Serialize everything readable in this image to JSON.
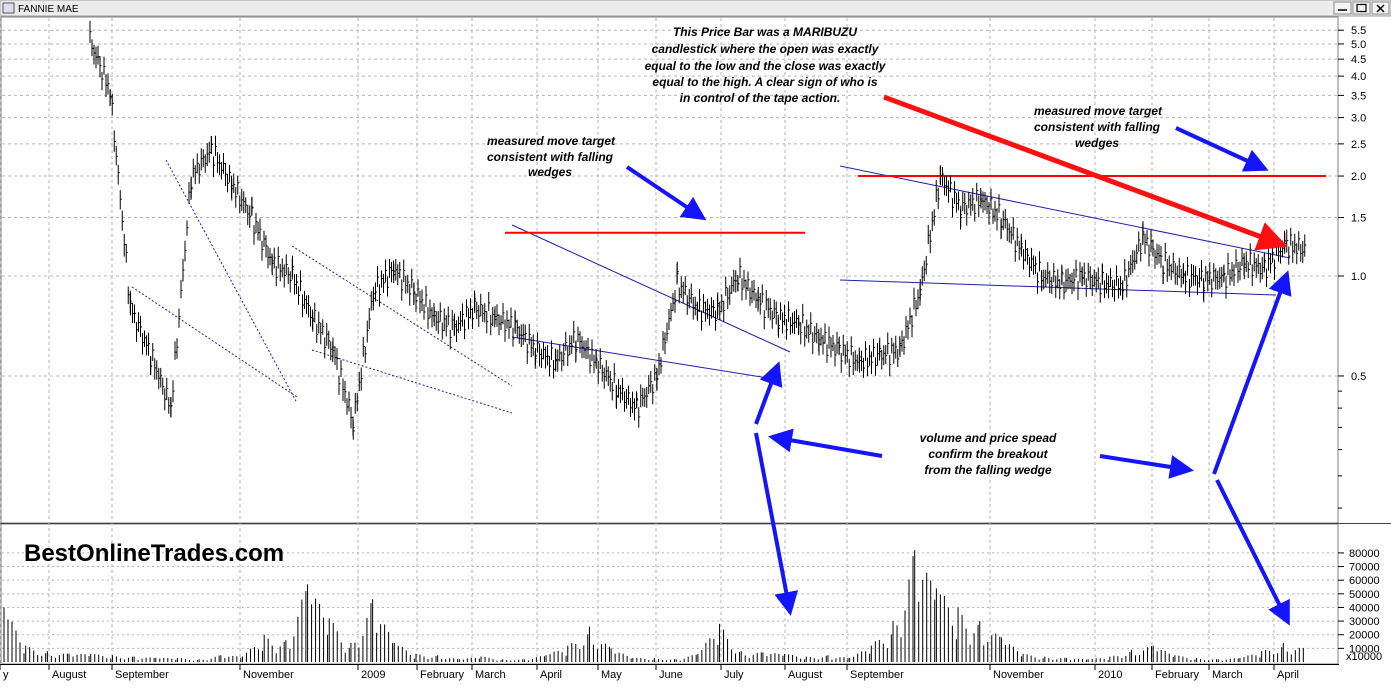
{
  "window": {
    "title": "FANNIE MAE",
    "icon": "chart-window-icon"
  },
  "brand": "BestOnlineTrades.com",
  "colors": {
    "price": "#000000",
    "wedge": "#1e1eb4",
    "target": "#ff0000",
    "arrow_blue": "#1414ff",
    "arrow_red": "#ff1010",
    "grid": "#b4b4b4"
  },
  "annotations": [
    {
      "id": "maribuzu",
      "lines": [
        "This Price Bar was a MARIBUZU",
        "candlestick where the open was exactly",
        "equal to the low and the close was exactly",
        "equal to the high. A clear sign of who is",
        "in control of the tape action."
      ]
    },
    {
      "id": "target-left",
      "lines": [
        "measured move target",
        "consistent with falling",
        "wedges"
      ]
    },
    {
      "id": "target-right",
      "lines": [
        "measured move target",
        "consistent with falling",
        "wedges"
      ]
    },
    {
      "id": "volume-note",
      "lines": [
        "volume and price spead",
        "confirm the breakout",
        "from the falling wedge"
      ]
    }
  ],
  "chart_data": [
    {
      "type": "line",
      "title": "FANNIE MAE",
      "scale": "log",
      "y_ticks": [
        "5.5",
        "5.0",
        "4.5",
        "4.0",
        "3.5",
        "3.0",
        "2.5",
        "2.0",
        "1.5",
        "1.0",
        "0.5"
      ],
      "x_labels": [
        "y",
        "August",
        "September",
        "November",
        "2009",
        "February",
        "March",
        "April",
        "May",
        "June",
        "July",
        "August",
        "September",
        "November",
        "2010",
        "February",
        "March",
        "April"
      ],
      "grid": true,
      "series": [
        {
          "x": [
            0,
            2,
            4,
            6,
            8,
            10,
            12,
            14,
            16,
            18,
            20,
            22,
            24,
            26,
            28,
            30,
            32,
            34,
            36,
            38,
            40,
            42,
            44,
            46,
            48,
            50,
            52,
            54,
            56,
            58,
            60,
            62,
            64,
            66,
            68,
            70,
            72,
            74,
            76,
            78,
            80,
            82,
            84,
            86,
            88,
            90,
            92,
            94,
            96,
            98,
            100,
            102,
            104,
            106,
            108,
            110,
            112,
            114,
            116,
            118,
            120
          ],
          "values": [
            5.1,
            3.6,
            0.8,
            0.58,
            0.4,
            2.0,
            2.4,
            1.9,
            1.5,
            1.1,
            1.0,
            0.75,
            0.6,
            0.36,
            0.9,
            1.05,
            0.9,
            0.75,
            0.7,
            0.8,
            0.75,
            0.7,
            0.6,
            0.55,
            0.65,
            0.55,
            0.46,
            0.4,
            0.5,
            0.95,
            0.8,
            0.78,
            1.0,
            0.85,
            0.75,
            0.72,
            0.65,
            0.6,
            0.55,
            0.58,
            0.6,
            0.9,
            2.0,
            1.6,
            1.7,
            1.5,
            1.2,
            1.0,
            0.95,
            1.0,
            0.95,
            0.94,
            1.3,
            1.1,
            1.0,
            0.98,
            0.99,
            1.1,
            1.05,
            1.25,
            1.2
          ]
        }
      ],
      "overlays": {
        "wedges": [
          "wedge-1",
          "wedge-2",
          "wedge-3",
          "wedge-4"
        ],
        "targets": [
          1.35,
          2.0
        ]
      }
    },
    {
      "type": "bar",
      "title": "",
      "y_ticks": [
        "80000",
        "70000",
        "60000",
        "50000",
        "40000",
        "30000",
        "20000",
        "10000"
      ],
      "multiplier_label": "x10000",
      "ylim": [
        0,
        88000
      ],
      "series": [
        {
          "values": [
            40000,
            12000,
            8000,
            6000,
            6000,
            5000,
            4000,
            3000,
            3000,
            2000,
            5000,
            4000,
            20000,
            16000,
            57000,
            32000,
            14000,
            46000,
            14000,
            6000,
            5000,
            2000,
            4000,
            2000,
            2000,
            5000,
            12000,
            26000,
            10000,
            3000,
            3000,
            2000,
            6000,
            28000,
            8000,
            7000,
            6000,
            4000,
            5000,
            3000,
            12000,
            30000,
            82000,
            54000,
            40000,
            30000,
            18000,
            6000,
            4000,
            3000,
            2000,
            4000,
            9000,
            12000,
            5000,
            3000,
            2000,
            3000,
            8000,
            14000,
            10000
          ]
        }
      ]
    }
  ]
}
